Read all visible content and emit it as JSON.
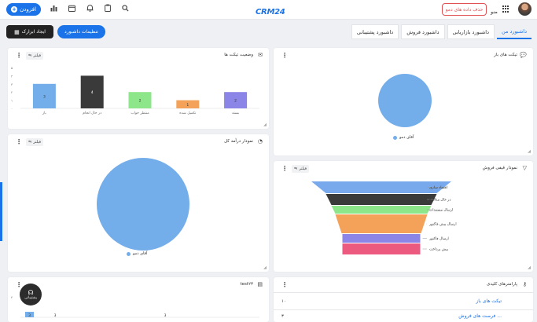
{
  "topbar": {
    "add_label": "افزودن",
    "logo": "CRM24",
    "delete_demo_label": "حذف داده های دمو",
    "menu_label": "منو",
    "icons": [
      "search-icon",
      "clipboard-icon",
      "bell-icon",
      "calendar-icon",
      "chart-icon"
    ]
  },
  "toolbar": {
    "create_label": "ایجاد ابزارک",
    "settings_label": "تنظیمات داشبورد"
  },
  "tabs": [
    {
      "label": "داشبورد من",
      "active": true
    },
    {
      "label": "داشبورد بازاریابی",
      "active": false
    },
    {
      "label": "داشبورد فروش",
      "active": false
    },
    {
      "label": "داشبورد پشتیبانی",
      "active": false
    }
  ],
  "common": {
    "filter_label": "فیلتر"
  },
  "cards": {
    "ticket_status": {
      "title": "وضعیت تیکت ها"
    },
    "open_tickets": {
      "title": "تیکت های باز"
    },
    "revenue": {
      "title": "نمودار درآمد کل"
    },
    "funnel": {
      "title": "نمودار قیفی فروش"
    },
    "test": {
      "title": "test۲۳"
    },
    "kpi": {
      "title": "پارامترهای کلیدی"
    }
  },
  "chart_data": [
    {
      "type": "bar",
      "title": "وضعیت تیکت ها",
      "categories": [
        "بسته",
        "تکمیل شده",
        "منتظر جواب",
        "در حال انجام",
        "باز"
      ],
      "values": [
        2,
        1,
        2,
        4,
        3
      ],
      "colors": [
        "#8a85e6",
        "#f4a259",
        "#8ee68a",
        "#3a3a3a",
        "#74aeea"
      ],
      "yticks": [
        "۰",
        "۱",
        "۲",
        "۳",
        "۴",
        "۵"
      ],
      "ylim": [
        0,
        5
      ]
    },
    {
      "type": "pie",
      "title": "تیکت های باز",
      "slices": [
        {
          "label": "آقای دمو",
          "value": 1,
          "color": "#74aeea"
        }
      ]
    },
    {
      "type": "pie",
      "title": "نمودار درآمد کل",
      "slices": [
        {
          "label": "آقای دمو",
          "value": 1,
          "color": "#74aeea"
        }
      ]
    },
    {
      "type": "funnel",
      "title": "نمودار قیفی فروش",
      "stages": [
        {
          "label": "اعتماد سازی",
          "color": "#78a9ec"
        },
        {
          "label": "در حال مذاکره",
          "color": "#3a3a3a"
        },
        {
          "label": "ارسال مستندات",
          "color": "#8ee68a"
        },
        {
          "label": "ارسال پیش فاکتور",
          "color": "#f4a259"
        },
        {
          "label": "ارسال فاکتور",
          "color": "#8a85e6"
        },
        {
          "label": "پیش پرداخت",
          "color": "#ec5a80"
        }
      ]
    },
    {
      "type": "bar",
      "title": "test۲۳",
      "categories": [
        "",
        "",
        ""
      ],
      "values": [
        3,
        3,
        3
      ],
      "colors": [
        "#74aeea"
      ],
      "ytick_top": "۴"
    }
  ],
  "kpi": {
    "rows": [
      {
        "label": "تیکت های باز",
        "value": "۱۰"
      },
      {
        "label": "فرصت های فروش ...",
        "value": "۳"
      }
    ]
  },
  "support": {
    "label": "پشتیبانی"
  }
}
